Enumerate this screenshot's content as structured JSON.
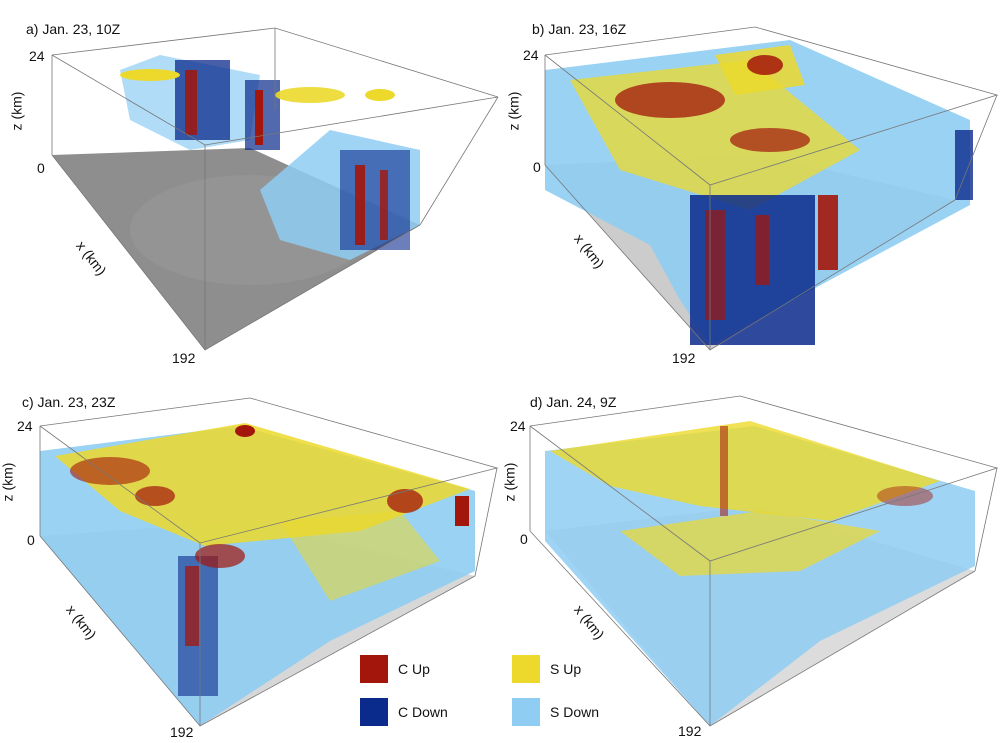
{
  "panels": [
    {
      "title": "a) Jan. 23, 10Z",
      "z_top": "24",
      "z_zero": "0",
      "z_label": "z (km)",
      "x_label": "x (km)",
      "x_end": "192"
    },
    {
      "title": "b) Jan. 23, 16Z",
      "z_top": "24",
      "z_zero": "0",
      "z_label": "z (km)",
      "x_label": "x (km)",
      "x_end": "192"
    },
    {
      "title": "c) Jan. 23, 23Z",
      "z_top": "24",
      "z_zero": "0",
      "z_label": "z (km)",
      "x_label": "x (km)",
      "x_end": "192"
    },
    {
      "title": "d) Jan. 24, 9Z",
      "z_top": "24",
      "z_zero": "0",
      "z_label": "z (km)",
      "x_label": "x (km)",
      "x_end": "192"
    }
  ],
  "legend": [
    {
      "label": "C Up",
      "color": "#a3160b"
    },
    {
      "label": "S Up",
      "color": "#ecd92b"
    },
    {
      "label": "C Down",
      "color": "#0a2a8c"
    },
    {
      "label": "S Down",
      "color": "#8fcdf3"
    }
  ]
}
